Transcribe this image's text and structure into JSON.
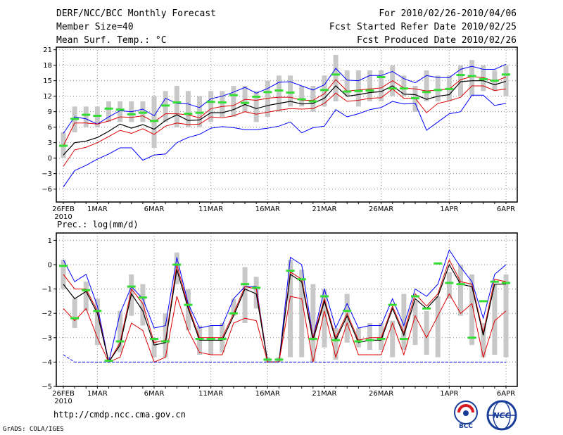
{
  "header": {
    "title": "DERF/NCC/BCC Monthly Forecast",
    "member_size": "Member Size=40",
    "variable": "Mean Surf. Temp.: °C",
    "period": "For 2010/02/26-2010/04/06",
    "refer_date": "Fcst Started Refer Date 2010/02/25",
    "produced_date": "Fcst Produced Date 2010/02/26"
  },
  "footer": {
    "url": "http://cmdp.ncc.cma.gov.cn",
    "credit": "GrADS: COLA/IGES",
    "logo_left_text": "BCC",
    "logo_right_text": "NCC"
  },
  "colors": {
    "max_min": "#0000ff",
    "spread": "#dd0000",
    "mean": "#000000",
    "median": "#33dd33",
    "box": "#c8c8c8",
    "grid": "#888888"
  },
  "chart_data": [
    {
      "type": "line",
      "name": "temperature",
      "title": "Mean Surf. Temp.: °C",
      "ylabel": "°C",
      "ylim": [
        -8.5,
        21.5
      ],
      "yticks": [
        21,
        18,
        15,
        12,
        9,
        6,
        3,
        0,
        -3,
        -6
      ],
      "xlim": [
        0,
        39
      ],
      "xticks": [
        {
          "day": 0,
          "label": "26FEB",
          "sub": "2010"
        },
        {
          "day": 3,
          "label": "1MAR"
        },
        {
          "day": 8,
          "label": "6MAR"
        },
        {
          "day": 13,
          "label": "11MAR"
        },
        {
          "day": 18,
          "label": "16MAR"
        },
        {
          "day": 23,
          "label": "21MAR"
        },
        {
          "day": 28,
          "label": "26MAR"
        },
        {
          "day": 34,
          "label": "1APR"
        },
        {
          "day": 39,
          "label": "6APR"
        }
      ],
      "grid": true,
      "x": [
        0,
        1,
        2,
        3,
        4,
        5,
        6,
        7,
        8,
        9,
        10,
        11,
        12,
        13,
        14,
        15,
        16,
        17,
        18,
        19,
        20,
        21,
        22,
        23,
        24,
        25,
        26,
        27,
        28,
        29,
        30,
        31,
        32,
        33,
        34,
        35,
        36,
        37,
        38,
        39
      ],
      "box_low": [
        0,
        5,
        6,
        6,
        7,
        7,
        7,
        7,
        2,
        7,
        6,
        6,
        6,
        7,
        8,
        8,
        9,
        7,
        8,
        9,
        10,
        10,
        9,
        10,
        11,
        12,
        10,
        11,
        11,
        12,
        12,
        9,
        11,
        11,
        11,
        12,
        12,
        13,
        13,
        12
      ],
      "box_high": [
        5,
        10,
        10,
        10,
        11,
        11,
        11,
        11,
        12,
        13,
        14,
        13,
        12,
        13,
        13,
        14,
        14,
        13,
        15,
        16,
        16,
        14,
        14,
        16,
        20,
        17,
        17,
        17,
        17,
        18,
        16,
        14,
        17,
        16,
        16,
        18,
        19,
        18,
        17,
        18
      ],
      "series": [
        {
          "name": "max",
          "values": [
            4.8,
            8.0,
            7.6,
            6.6,
            8.0,
            9.2,
            9.0,
            9.5,
            8.2,
            11.6,
            10.6,
            10.5,
            9.8,
            11.5,
            12.0,
            12.8,
            13.7,
            12.6,
            13.5,
            14.7,
            14.8,
            14.0,
            13.2,
            14.2,
            17.4,
            15.1,
            15.0,
            16.0,
            16.0,
            16.8,
            15.4,
            14.6,
            16.0,
            15.6,
            15.6,
            17.2,
            17.8,
            17.2,
            17.2,
            18.2
          ]
        },
        {
          "name": "upper",
          "values": [
            2.4,
            6.8,
            6.8,
            6.6,
            7.2,
            8.0,
            7.9,
            8.2,
            7.0,
            8.6,
            8.6,
            8.4,
            7.8,
            9.6,
            10.0,
            10.2,
            11.4,
            11.2,
            11.6,
            11.8,
            11.8,
            11.2,
            11.2,
            12.5,
            15.2,
            13.0,
            13.2,
            13.4,
            13.6,
            15.0,
            13.6,
            13.4,
            13.0,
            13.2,
            13.4,
            15.2,
            15.8,
            15.6,
            14.9,
            15.7
          ]
        },
        {
          "name": "mean",
          "values": [
            0.6,
            3.0,
            3.3,
            4.0,
            5.2,
            6.6,
            5.8,
            6.5,
            5.6,
            7.3,
            8.4,
            7.3,
            7.4,
            8.8,
            8.8,
            9.4,
            10.4,
            9.6,
            10.2,
            10.6,
            11.0,
            10.5,
            10.6,
            11.6,
            14.0,
            12.0,
            12.3,
            12.7,
            12.9,
            14.0,
            12.4,
            12.3,
            11.4,
            12.0,
            12.3,
            14.8,
            15.0,
            15.0,
            14.2,
            14.9
          ]
        },
        {
          "name": "lower",
          "values": [
            -1.6,
            1.6,
            2.1,
            3.0,
            4.2,
            5.4,
            4.8,
            5.7,
            4.6,
            6.2,
            6.8,
            6.5,
            6.6,
            8.0,
            7.8,
            8.2,
            9.0,
            8.5,
            8.9,
            9.3,
            9.6,
            9.5,
            9.6,
            10.6,
            12.6,
            11.0,
            11.2,
            11.6,
            11.7,
            13.4,
            11.6,
            11.6,
            8.8,
            10.6,
            11.1,
            11.8,
            14.0,
            14.0,
            13.1,
            13.4
          ]
        },
        {
          "name": "min",
          "values": [
            -5.6,
            -2.4,
            -1.4,
            -0.2,
            0.8,
            2.0,
            2.0,
            -0.4,
            0.6,
            0.8,
            3.0,
            4.0,
            4.6,
            5.8,
            6.1,
            5.9,
            5.5,
            5.5,
            5.8,
            6.2,
            7.0,
            4.9,
            5.9,
            6.2,
            9.4,
            8.0,
            8.6,
            9.4,
            9.8,
            11.0,
            10.5,
            10.6,
            5.4,
            7.0,
            8.6,
            9.0,
            12.2,
            12.2,
            10.2,
            10.6
          ]
        },
        {
          "name": "median",
          "values": [
            2.4,
            7.6,
            8.4,
            8.2,
            9.6,
            9.4,
            8.5,
            8.8,
            7.2,
            10.2,
            10.8,
            8.6,
            8.8,
            10.9,
            10.8,
            12.2,
            10.7,
            11.9,
            12.8,
            13.1,
            12.7,
            11.4,
            11.0,
            13.2,
            16.2,
            12.9,
            13.0,
            13.1,
            15.7,
            13.5,
            13.5,
            11.6,
            12.8,
            13.2,
            13.4,
            16.1,
            15.9,
            15.3,
            15.0,
            16.2
          ]
        }
      ]
    },
    {
      "type": "line",
      "name": "precipitation",
      "title": "Prec.: log(mm/d)",
      "ylabel": "log(mm/d)",
      "ylim": [
        -5,
        1.3
      ],
      "yticks": [
        1,
        0,
        -1,
        -2,
        -3,
        -4,
        -5
      ],
      "xlim": [
        0,
        39
      ],
      "xticks": [
        {
          "day": 0,
          "label": "26FEB",
          "sub": "2010"
        },
        {
          "day": 3,
          "label": "1MAR"
        },
        {
          "day": 8,
          "label": "6MAR"
        },
        {
          "day": 13,
          "label": "11MAR"
        },
        {
          "day": 18,
          "label": "16MAR"
        },
        {
          "day": 23,
          "label": "21MAR"
        },
        {
          "day": 28,
          "label": "26MAR"
        },
        {
          "day": 34,
          "label": "1APR"
        },
        {
          "day": 39,
          "label": "6APR"
        }
      ],
      "grid": true,
      "x": [
        0,
        1,
        2,
        3,
        4,
        5,
        6,
        7,
        8,
        9,
        10,
        11,
        12,
        13,
        14,
        15,
        16,
        17,
        18,
        19,
        20,
        21,
        22,
        23,
        24,
        25,
        26,
        27,
        28,
        29,
        30,
        31,
        32,
        33,
        34,
        35,
        36,
        37,
        38,
        39
      ],
      "box_low": [
        -1.0,
        -2.6,
        -1.9,
        -3.3,
        -4.0,
        -3.6,
        -2.1,
        -2.5,
        -3.8,
        -3.8,
        -0.8,
        -2.7,
        -3.7,
        -3.7,
        -3.6,
        -2.1,
        -2.4,
        -1.8,
        -4.0,
        -4.0,
        -3.8,
        -3.8,
        -4.0,
        -3.4,
        -3.9,
        -3.2,
        -3.4,
        -3.5,
        -3.5,
        -3.8,
        -3.5,
        -3.3,
        -3.7,
        -3.8,
        -1.4,
        -2.1,
        -3.3,
        -3.8,
        -3.7,
        -3.8
      ],
      "box_high": [
        0.2,
        -1.4,
        -0.7,
        -1.4,
        -3.8,
        -1.9,
        -0.4,
        -0.8,
        -3.0,
        -2.0,
        0.5,
        -1.0,
        -2.5,
        -2.5,
        -2.4,
        -1.4,
        -0.1,
        -0.5,
        -3.8,
        -3.8,
        0.2,
        -0.2,
        -0.8,
        -1.0,
        -2.6,
        -1.2,
        -2.6,
        -2.4,
        -2.4,
        -2.3,
        -1.2,
        -1.5,
        -1.9,
        -1.3,
        -0.3,
        0.0,
        -0.4,
        -2.4,
        -0.8,
        -0.4
      ],
      "series": [
        {
          "name": "max",
          "values": [
            0.2,
            -0.7,
            -0.4,
            -1.7,
            -4.0,
            -2.0,
            -0.9,
            -1.4,
            -2.6,
            -2.5,
            0.3,
            -1.6,
            -2.6,
            -2.5,
            -2.5,
            -1.4,
            -0.9,
            -0.9,
            -4.0,
            -4.0,
            0.3,
            0.0,
            -3.0,
            -1.0,
            -2.6,
            -1.6,
            -2.6,
            -2.5,
            -2.5,
            -1.4,
            -2.5,
            -1.0,
            -1.3,
            -0.8,
            0.6,
            -0.1,
            -0.7,
            -2.2,
            -0.4,
            0.0
          ]
        },
        {
          "name": "upper",
          "values": [
            -0.4,
            -1.0,
            -1.0,
            -1.9,
            -4.0,
            -3.2,
            -1.0,
            -1.6,
            -3.2,
            -3.1,
            0.0,
            -1.7,
            -3.0,
            -3.0,
            -3.0,
            -2.0,
            -0.9,
            -1.0,
            -4.0,
            -4.0,
            -0.3,
            -0.6,
            -3.0,
            -1.4,
            -3.0,
            -2.0,
            -3.1,
            -3.0,
            -3.0,
            -1.7,
            -2.8,
            -1.2,
            -1.7,
            -1.2,
            0.2,
            -0.7,
            -0.8,
            -2.8,
            -0.6,
            -0.7
          ]
        },
        {
          "name": "mean",
          "values": [
            -0.8,
            -1.4,
            -1.1,
            -2.0,
            -4.0,
            -3.3,
            -1.2,
            -1.9,
            -3.3,
            -3.2,
            -0.2,
            -1.8,
            -3.1,
            -3.1,
            -3.1,
            -2.1,
            -1.0,
            -1.2,
            -4.0,
            -4.0,
            -0.4,
            -0.7,
            -3.1,
            -1.5,
            -3.1,
            -2.1,
            -3.2,
            -3.1,
            -3.1,
            -1.8,
            -2.9,
            -1.4,
            -1.8,
            -1.3,
            0.0,
            -0.8,
            -0.9,
            -2.9,
            -0.8,
            -0.8
          ]
        },
        {
          "name": "lower",
          "values": [
            -1.8,
            -2.3,
            -1.8,
            -3.0,
            -4.0,
            -3.8,
            -2.4,
            -2.7,
            -4.0,
            -3.8,
            -1.3,
            -2.7,
            -3.6,
            -3.7,
            -3.7,
            -2.4,
            -2.2,
            -2.3,
            -4.0,
            -4.0,
            -1.3,
            -1.4,
            -4.0,
            -1.9,
            -3.8,
            -2.4,
            -3.7,
            -3.7,
            -3.7,
            -2.4,
            -3.7,
            -2.1,
            -3.0,
            -2.1,
            -1.2,
            -2.0,
            -1.6,
            -3.8,
            -2.3,
            -1.9
          ]
        },
        {
          "name": "min",
          "values": [
            -3.7,
            -4.0,
            -4.0,
            -4.0,
            -4.0,
            -4.0,
            -4.0,
            -4.0,
            -4.0,
            -4.0,
            -4.0,
            -4.0,
            -4.0,
            -4.0,
            -4.0,
            -4.0,
            -4.0,
            -4.0,
            -4.0,
            -4.0,
            -4.0,
            -4.0,
            -4.0,
            -4.0,
            -4.0,
            -4.0,
            -4.0,
            -4.0,
            -4.0,
            -4.0,
            -4.0,
            -4.0,
            -4.0,
            -4.0,
            -4.0,
            -4.0,
            -4.0,
            -4.0,
            -4.0,
            -4.0
          ]
        },
        {
          "name": "median",
          "values": [
            -0.05,
            -2.2,
            -1.05,
            -1.9,
            -3.95,
            -3.15,
            -0.9,
            -1.35,
            -3.05,
            -3.15,
            0.0,
            -1.65,
            -3.05,
            -3.05,
            -3.05,
            -2.0,
            -0.8,
            -0.95,
            -3.9,
            -3.9,
            -0.25,
            -0.6,
            -3.05,
            -1.3,
            -3.1,
            -1.9,
            -3.15,
            -3.1,
            -3.05,
            -1.65,
            -3.05,
            -1.3,
            -1.8,
            0.05,
            -0.75,
            -0.8,
            -3.0,
            -1.5,
            -0.7,
            -0.75
          ]
        }
      ]
    }
  ]
}
